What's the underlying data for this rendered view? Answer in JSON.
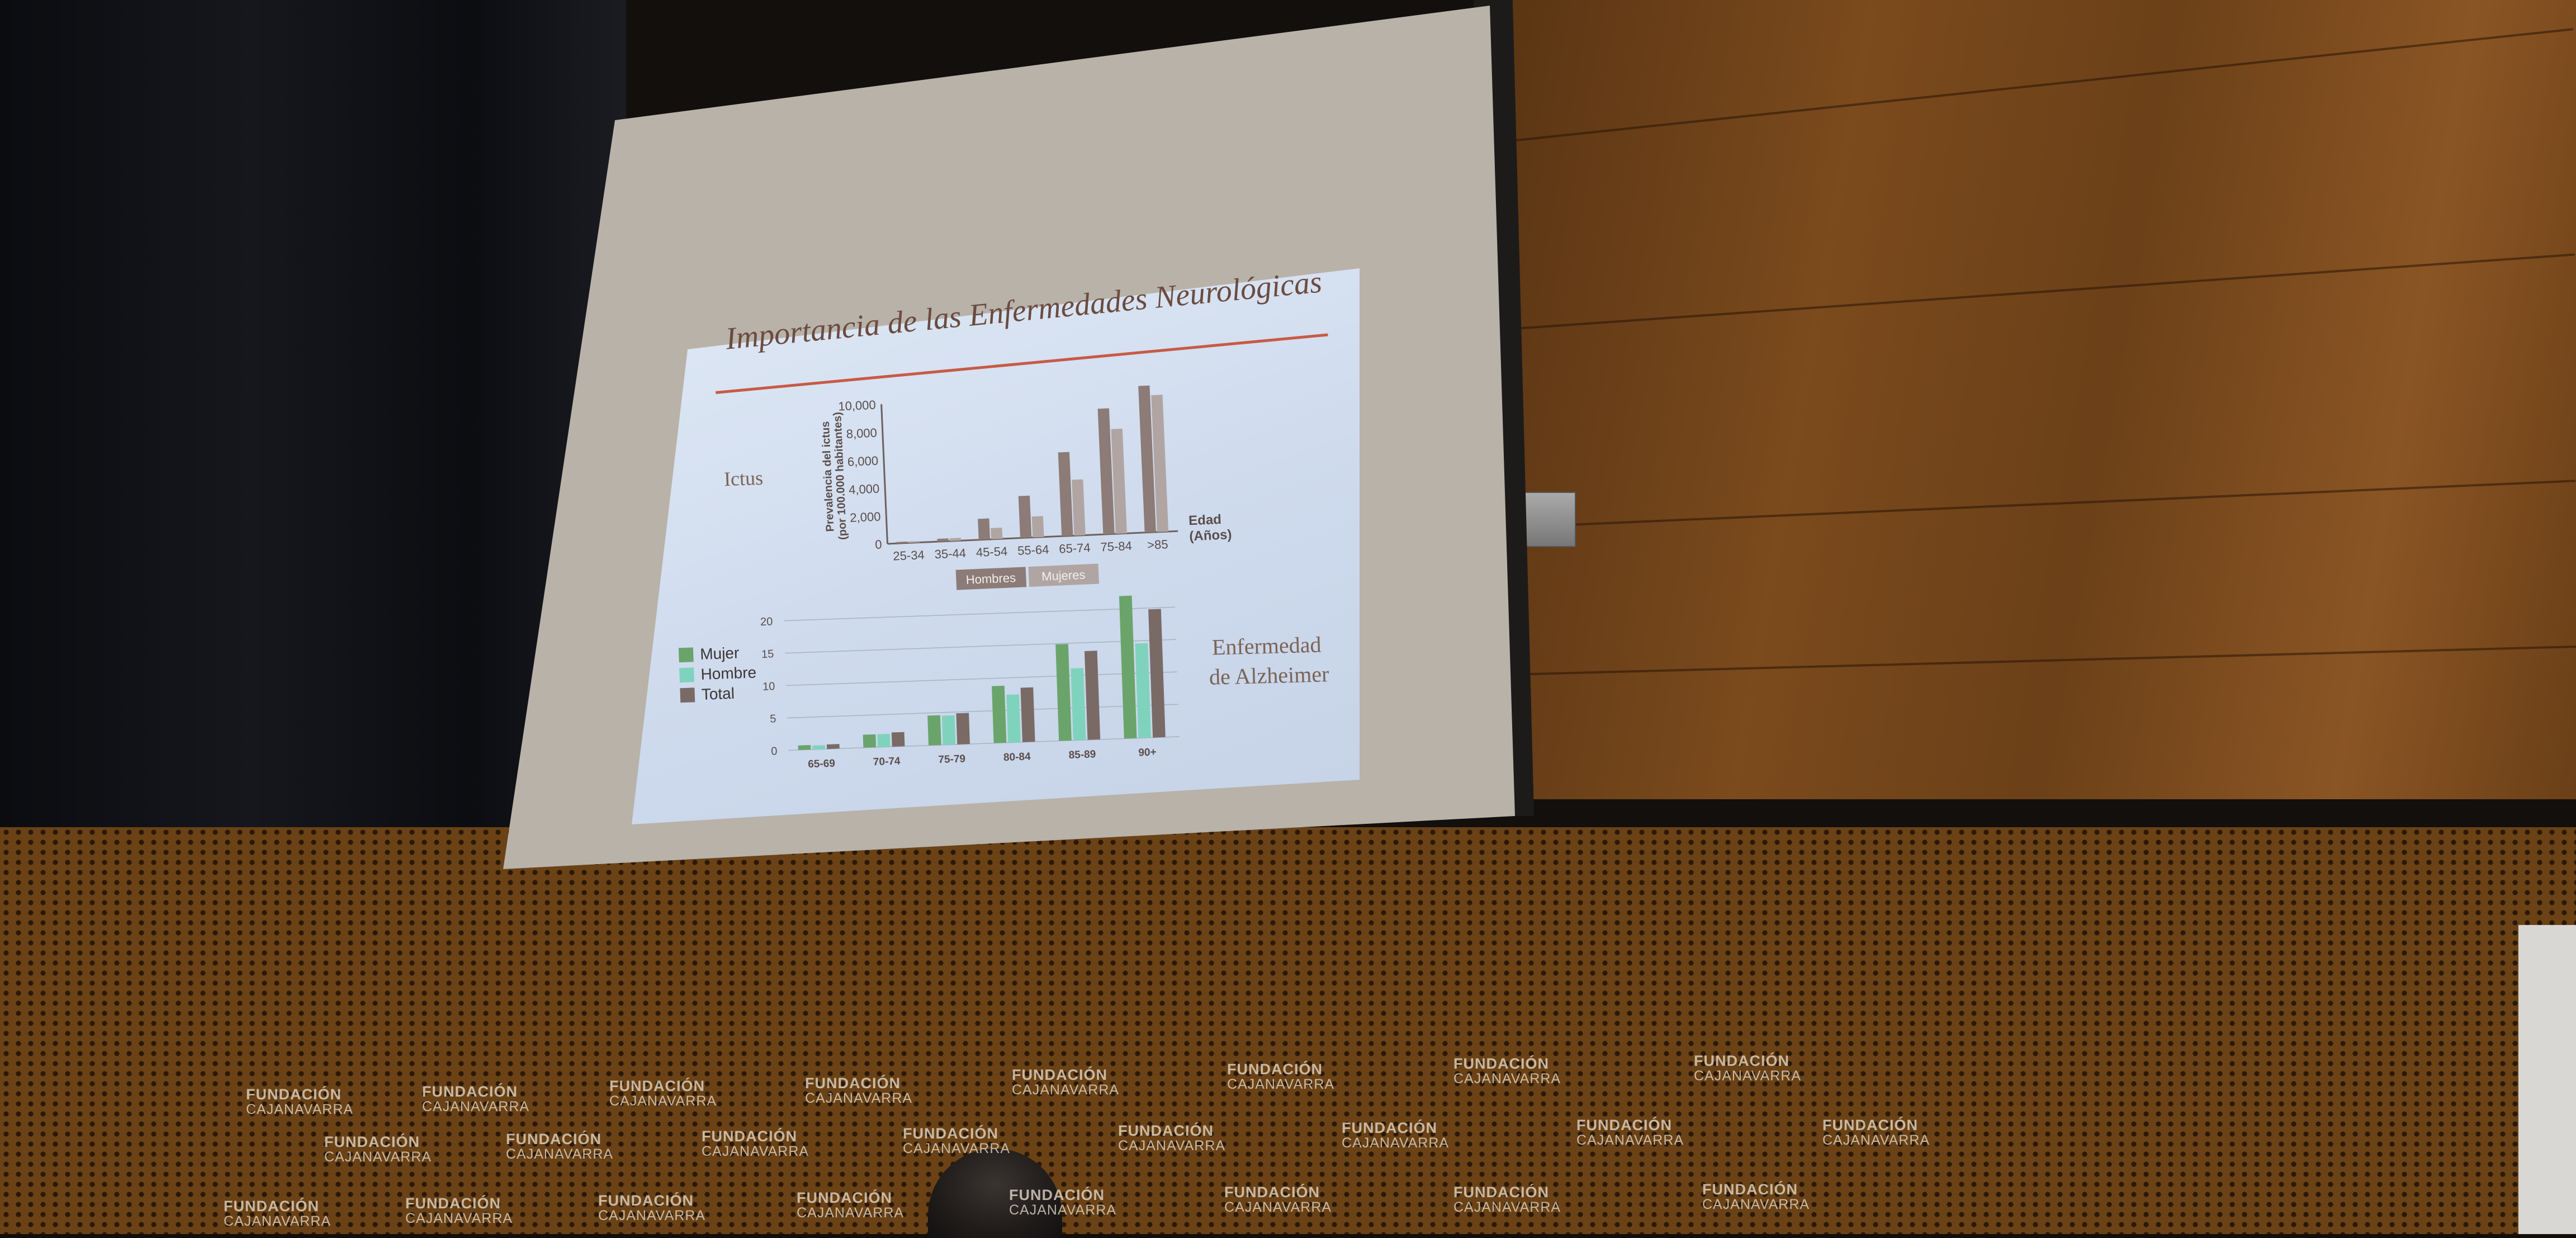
{
  "slide": {
    "title": "Importancia de las Enfermedades Neurológicas",
    "label_left": "Ictus",
    "label_right_1": "Enfermedad",
    "label_right_2": "de Alzheimer"
  },
  "chart_data": [
    {
      "type": "bar",
      "ylabel_1": "Prevalencia del ictus",
      "ylabel_2": "(por 100.000 habitantes)",
      "xlabel_1": "Edad",
      "xlabel_2": "(Años)",
      "categories": [
        "25-34",
        "35-44",
        "45-54",
        "55-64",
        "65-74",
        "75-84",
        ">85"
      ],
      "yticks": [
        "0",
        "2,000",
        "4,000",
        "6,000",
        "8,000",
        "10,000"
      ],
      "ylim": [
        0,
        10000
      ],
      "legend_placement": "bottom",
      "series": [
        {
          "name": "Hombres",
          "color": "#8c7b76",
          "values": [
            100,
            200,
            1500,
            3000,
            6000,
            9000,
            10500
          ]
        },
        {
          "name": "Mujeres",
          "color": "#b0a5a2",
          "values": [
            100,
            200,
            800,
            1500,
            4000,
            7500,
            9800
          ]
        }
      ]
    },
    {
      "type": "bar",
      "categories": [
        "65-69",
        "70-74",
        "75-79",
        "80-84",
        "85-89",
        "90+"
      ],
      "yticks": [
        "0",
        "5",
        "10",
        "15",
        "20"
      ],
      "ylim": [
        0,
        25
      ],
      "legend_placement": "left",
      "series": [
        {
          "name": "Mujer",
          "color": "#6aa46a",
          "values": [
            0.7,
            2,
            4.6,
            8.8,
            14.9,
            22
          ]
        },
        {
          "name": "Hombre",
          "color": "#7fd3bd",
          "values": [
            0.6,
            2,
            4.5,
            7.4,
            11.1,
            14.6
          ]
        },
        {
          "name": "Total",
          "color": "#7a6a66",
          "values": [
            0.7,
            2.2,
            4.8,
            8.4,
            13.7,
            19.8
          ]
        }
      ]
    }
  ],
  "wall_logos": [
    {
      "line1": "FUNDACIÓN",
      "line2": "CAJANAVARRA"
    }
  ]
}
